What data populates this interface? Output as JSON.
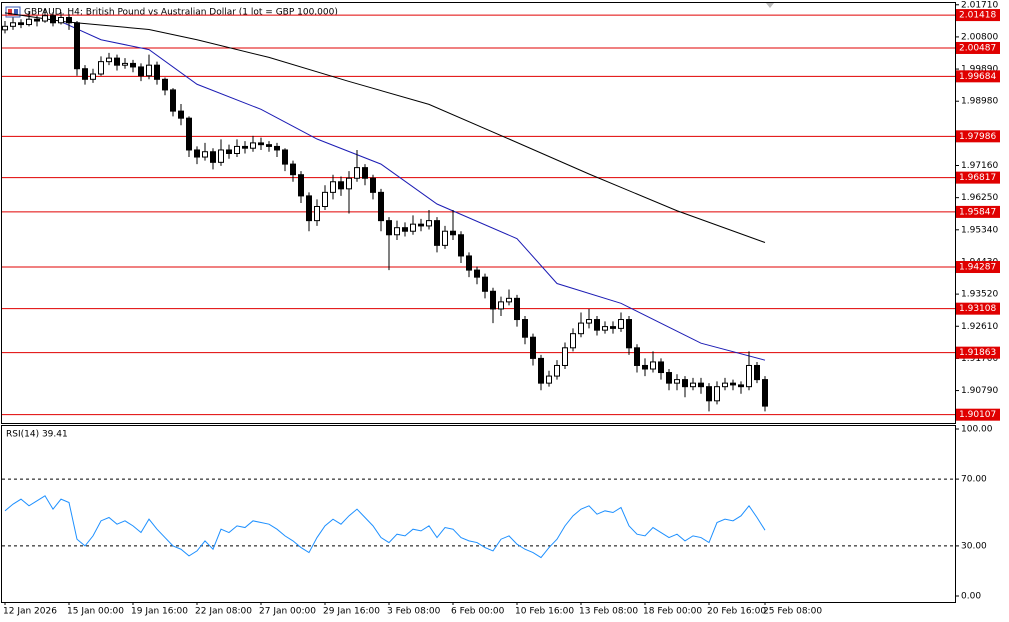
{
  "chart_data": [
    {
      "type": "candlestick",
      "title": "GBPAUD, H4:  British Pound vs Australian Dollar (1 lot = GBP 100,000)",
      "ylim": [
        1.899,
        2.0176
      ],
      "yticks": [
        {
          "value": 2.0171,
          "label": "2.01710"
        },
        {
          "value": 2.008,
          "label": "2.00800"
        },
        {
          "value": 1.9989,
          "label": "1.99890"
        },
        {
          "value": 1.9898,
          "label": "1.98980"
        },
        {
          "value": 1.9716,
          "label": "1.97160"
        },
        {
          "value": 1.9625,
          "label": "1.96250"
        },
        {
          "value": 1.9534,
          "label": "1.95340"
        },
        {
          "value": 1.9443,
          "label": "1.94430"
        },
        {
          "value": 1.9352,
          "label": "1.93520"
        },
        {
          "value": 1.9261,
          "label": "1.92610"
        },
        {
          "value": 1.917,
          "label": "1.91700"
        },
        {
          "value": 1.9079,
          "label": "1.90790"
        }
      ],
      "levels": [
        2.01418,
        2.00487,
        1.99684,
        1.97986,
        1.96817,
        1.95847,
        1.94287,
        1.93108,
        1.91863,
        1.90107
      ],
      "level_color": "#e00000",
      "categories": [
        "12 Jan 2026",
        null,
        null,
        null,
        null,
        null,
        null,
        null,
        "15 Jan 00:00",
        null,
        null,
        null,
        null,
        null,
        null,
        null,
        "19 Jan 16:00",
        null,
        null,
        null,
        null,
        null,
        null,
        null,
        "22 Jan 08:00",
        null,
        null,
        null,
        null,
        null,
        null,
        null,
        "27 Jan 00:00",
        null,
        null,
        null,
        null,
        null,
        null,
        null,
        "29 Jan 16:00",
        null,
        null,
        null,
        null,
        null,
        null,
        null,
        "3 Feb 08:00",
        null,
        null,
        null,
        null,
        null,
        null,
        null,
        "6 Feb 00:00",
        null,
        null,
        null,
        null,
        null,
        null,
        null,
        "10 Feb 16:00",
        null,
        null,
        null,
        null,
        null,
        null,
        null,
        "13 Feb 08:00",
        null,
        null,
        null,
        null,
        null,
        null,
        null,
        "18 Feb 00:00",
        null,
        null,
        null,
        null,
        null,
        null,
        null,
        "20 Feb 16:00",
        null,
        null,
        null,
        null,
        null,
        null,
        "25 Feb 08:00"
      ],
      "candles": [
        [
          2.01,
          2.0125,
          2.009,
          2.011
        ],
        [
          2.011,
          2.0135,
          2.01,
          2.012
        ],
        [
          2.012,
          2.013,
          2.0105,
          2.0115
        ],
        [
          2.0115,
          2.015,
          2.011,
          2.013
        ],
        [
          2.013,
          2.014,
          2.011,
          2.0125
        ],
        [
          2.0125,
          2.016,
          2.012,
          2.014
        ],
        [
          2.014,
          2.015,
          2.011,
          2.012
        ],
        [
          2.012,
          2.015,
          2.0115,
          2.0135
        ],
        [
          2.0135,
          2.0145,
          2.01,
          2.012
        ],
        [
          2.012,
          2.0125,
          1.997,
          1.999
        ],
        [
          1.999,
          2.0,
          1.9945,
          1.996
        ],
        [
          1.996,
          1.999,
          1.995,
          1.9975
        ],
        [
          1.9975,
          2.0025,
          1.997,
          2.001
        ],
        [
          2.001,
          2.0035,
          2.0,
          2.002
        ],
        [
          2.002,
          2.003,
          1.9985,
          2.0
        ],
        [
          2.0,
          2.002,
          1.999,
          2.0005
        ],
        [
          2.0005,
          2.0015,
          1.998,
          1.9995
        ],
        [
          1.9995,
          2.0005,
          1.9955,
          1.997
        ],
        [
          1.997,
          2.003,
          1.996,
          2.0
        ],
        [
          2.0,
          2.001,
          1.9945,
          1.996
        ],
        [
          1.996,
          1.9965,
          1.9915,
          1.993
        ],
        [
          1.993,
          1.9935,
          1.9855,
          1.987
        ],
        [
          1.987,
          1.989,
          1.983,
          1.985
        ],
        [
          1.985,
          1.9855,
          1.974,
          1.976
        ],
        [
          1.976,
          1.977,
          1.972,
          1.974
        ],
        [
          1.974,
          1.978,
          1.973,
          1.9755
        ],
        [
          1.9755,
          1.9765,
          1.9705,
          1.9725
        ],
        [
          1.9725,
          1.979,
          1.9715,
          1.976
        ],
        [
          1.976,
          1.9775,
          1.9735,
          1.975
        ],
        [
          1.975,
          1.979,
          1.974,
          1.977
        ],
        [
          1.977,
          1.9785,
          1.975,
          1.9765
        ],
        [
          1.9765,
          1.98,
          1.9755,
          1.978
        ],
        [
          1.978,
          1.9795,
          1.976,
          1.9775
        ],
        [
          1.9775,
          1.9785,
          1.9755,
          1.977
        ],
        [
          1.977,
          1.978,
          1.974,
          1.976
        ],
        [
          1.976,
          1.9765,
          1.97,
          1.972
        ],
        [
          1.972,
          1.973,
          1.967,
          1.969
        ],
        [
          1.969,
          1.97,
          1.961,
          1.963
        ],
        [
          1.963,
          1.964,
          1.953,
          1.956
        ],
        [
          1.956,
          1.962,
          1.9545,
          1.96
        ],
        [
          1.96,
          1.966,
          1.959,
          1.964
        ],
        [
          1.964,
          1.969,
          1.962,
          1.967
        ],
        [
          1.967,
          1.9685,
          1.963,
          1.965
        ],
        [
          1.965,
          1.97,
          1.958,
          1.968
        ],
        [
          1.968,
          1.976,
          1.967,
          1.971
        ],
        [
          1.971,
          1.972,
          1.966,
          1.968
        ],
        [
          1.968,
          1.969,
          1.962,
          1.964
        ],
        [
          1.964,
          1.965,
          1.953,
          1.956
        ],
        [
          1.956,
          1.957,
          1.942,
          1.952
        ],
        [
          1.952,
          1.956,
          1.9505,
          1.954
        ],
        [
          1.954,
          1.9555,
          1.9515,
          1.953
        ],
        [
          1.953,
          1.9575,
          1.952,
          1.955
        ],
        [
          1.955,
          1.9565,
          1.953,
          1.9545
        ],
        [
          1.9545,
          1.959,
          1.9535,
          1.956
        ],
        [
          1.956,
          1.957,
          1.947,
          1.949
        ],
        [
          1.949,
          1.9545,
          1.948,
          1.953
        ],
        [
          1.953,
          1.959,
          1.9505,
          1.952
        ],
        [
          1.952,
          1.953,
          1.944,
          1.946
        ],
        [
          1.946,
          1.947,
          1.94,
          1.942
        ],
        [
          1.942,
          1.943,
          1.938,
          1.94
        ],
        [
          1.94,
          1.941,
          1.934,
          1.936
        ],
        [
          1.936,
          1.937,
          1.927,
          1.931
        ],
        [
          1.931,
          1.9345,
          1.929,
          1.933
        ],
        [
          1.933,
          1.9365,
          1.932,
          1.934
        ],
        [
          1.934,
          1.935,
          1.926,
          1.928
        ],
        [
          1.928,
          1.929,
          1.921,
          1.923
        ],
        [
          1.923,
          1.924,
          1.915,
          1.917
        ],
        [
          1.917,
          1.918,
          1.908,
          1.91
        ],
        [
          1.91,
          1.9135,
          1.909,
          1.912
        ],
        [
          1.912,
          1.9165,
          1.911,
          1.915
        ],
        [
          1.915,
          1.9215,
          1.914,
          1.92
        ],
        [
          1.92,
          1.9255,
          1.919,
          1.924
        ],
        [
          1.924,
          1.93,
          1.923,
          1.927
        ],
        [
          1.927,
          1.931,
          1.9255,
          1.928
        ],
        [
          1.928,
          1.929,
          1.9235,
          1.925
        ],
        [
          1.925,
          1.9275,
          1.924,
          1.926
        ],
        [
          1.926,
          1.9275,
          1.924,
          1.9255
        ],
        [
          1.9255,
          1.93,
          1.9245,
          1.928
        ],
        [
          1.928,
          1.929,
          1.918,
          1.92
        ],
        [
          1.92,
          1.921,
          1.913,
          1.915
        ],
        [
          1.915,
          1.917,
          1.912,
          1.914
        ],
        [
          1.914,
          1.919,
          1.913,
          1.916
        ],
        [
          1.916,
          1.917,
          1.911,
          1.913
        ],
        [
          1.913,
          1.914,
          1.908,
          1.91
        ],
        [
          1.91,
          1.9125,
          1.908,
          1.911
        ],
        [
          1.911,
          1.912,
          1.906,
          1.909
        ],
        [
          1.909,
          1.9115,
          1.908,
          1.91
        ],
        [
          1.91,
          1.9115,
          1.907,
          1.909
        ],
        [
          1.909,
          1.91,
          1.902,
          1.905
        ],
        [
          1.905,
          1.9105,
          1.904,
          1.909
        ],
        [
          1.909,
          1.9115,
          1.908,
          1.91
        ],
        [
          1.91,
          1.911,
          1.908,
          1.9095
        ],
        [
          1.9095,
          1.9105,
          1.907,
          1.909
        ],
        [
          1.909,
          1.919,
          1.908,
          1.915
        ],
        [
          1.915,
          1.916,
          1.91,
          1.911
        ],
        [
          1.911,
          1.912,
          1.902,
          1.9035
        ]
      ],
      "series": [
        {
          "color": "#000000",
          "x": [
            0,
            7.5,
            18,
            24,
            33,
            43,
            53,
            63,
            73,
            84,
            95
          ],
          "values": [
            2.0148,
            2.0123,
            2.0101,
            2.0072,
            2.0022,
            1.9954,
            1.9889,
            1.9791,
            1.9692,
            1.9588,
            1.9498
          ]
        },
        {
          "color": "#1c1cb4",
          "x": [
            7,
            12,
            18,
            24,
            32,
            39,
            47,
            54,
            64,
            69,
            77,
            87,
            95
          ],
          "values": [
            2.0123,
            2.0072,
            2.0044,
            1.9946,
            1.9875,
            1.9791,
            1.972,
            1.9607,
            1.9509,
            1.9382,
            1.9326,
            1.9213,
            1.9165
          ]
        }
      ]
    },
    {
      "type": "line",
      "title": "RSI(14) 39.41",
      "ylim": [
        0,
        100
      ],
      "yticks": [
        {
          "value": 100,
          "label": "100.00"
        },
        {
          "value": 70,
          "label": "70.00"
        },
        {
          "value": 30,
          "label": "30.00"
        },
        {
          "value": 0,
          "label": "0.00"
        }
      ],
      "levels": [
        70,
        30
      ],
      "series": [
        {
          "color": "#1e90ff",
          "values": [
            51,
            55,
            58,
            54,
            57,
            60,
            52,
            58,
            56,
            34,
            30,
            36,
            45,
            47,
            43,
            45,
            42,
            38,
            46,
            40,
            35,
            30,
            28,
            24,
            27,
            33,
            28,
            40,
            38,
            42,
            41,
            45,
            44,
            43,
            40,
            36,
            33,
            29,
            26,
            35,
            42,
            46,
            43,
            48,
            52,
            47,
            42,
            35,
            32,
            37,
            36,
            40,
            39,
            42,
            35,
            41,
            40,
            35,
            33,
            32,
            29,
            27,
            34,
            36,
            31,
            28,
            26,
            23,
            29,
            34,
            42,
            48,
            52,
            54,
            49,
            51,
            50,
            53,
            42,
            37,
            36,
            41,
            38,
            35,
            37,
            33,
            36,
            35,
            32,
            44,
            46,
            45,
            48,
            54,
            47,
            39.41
          ]
        }
      ]
    }
  ]
}
